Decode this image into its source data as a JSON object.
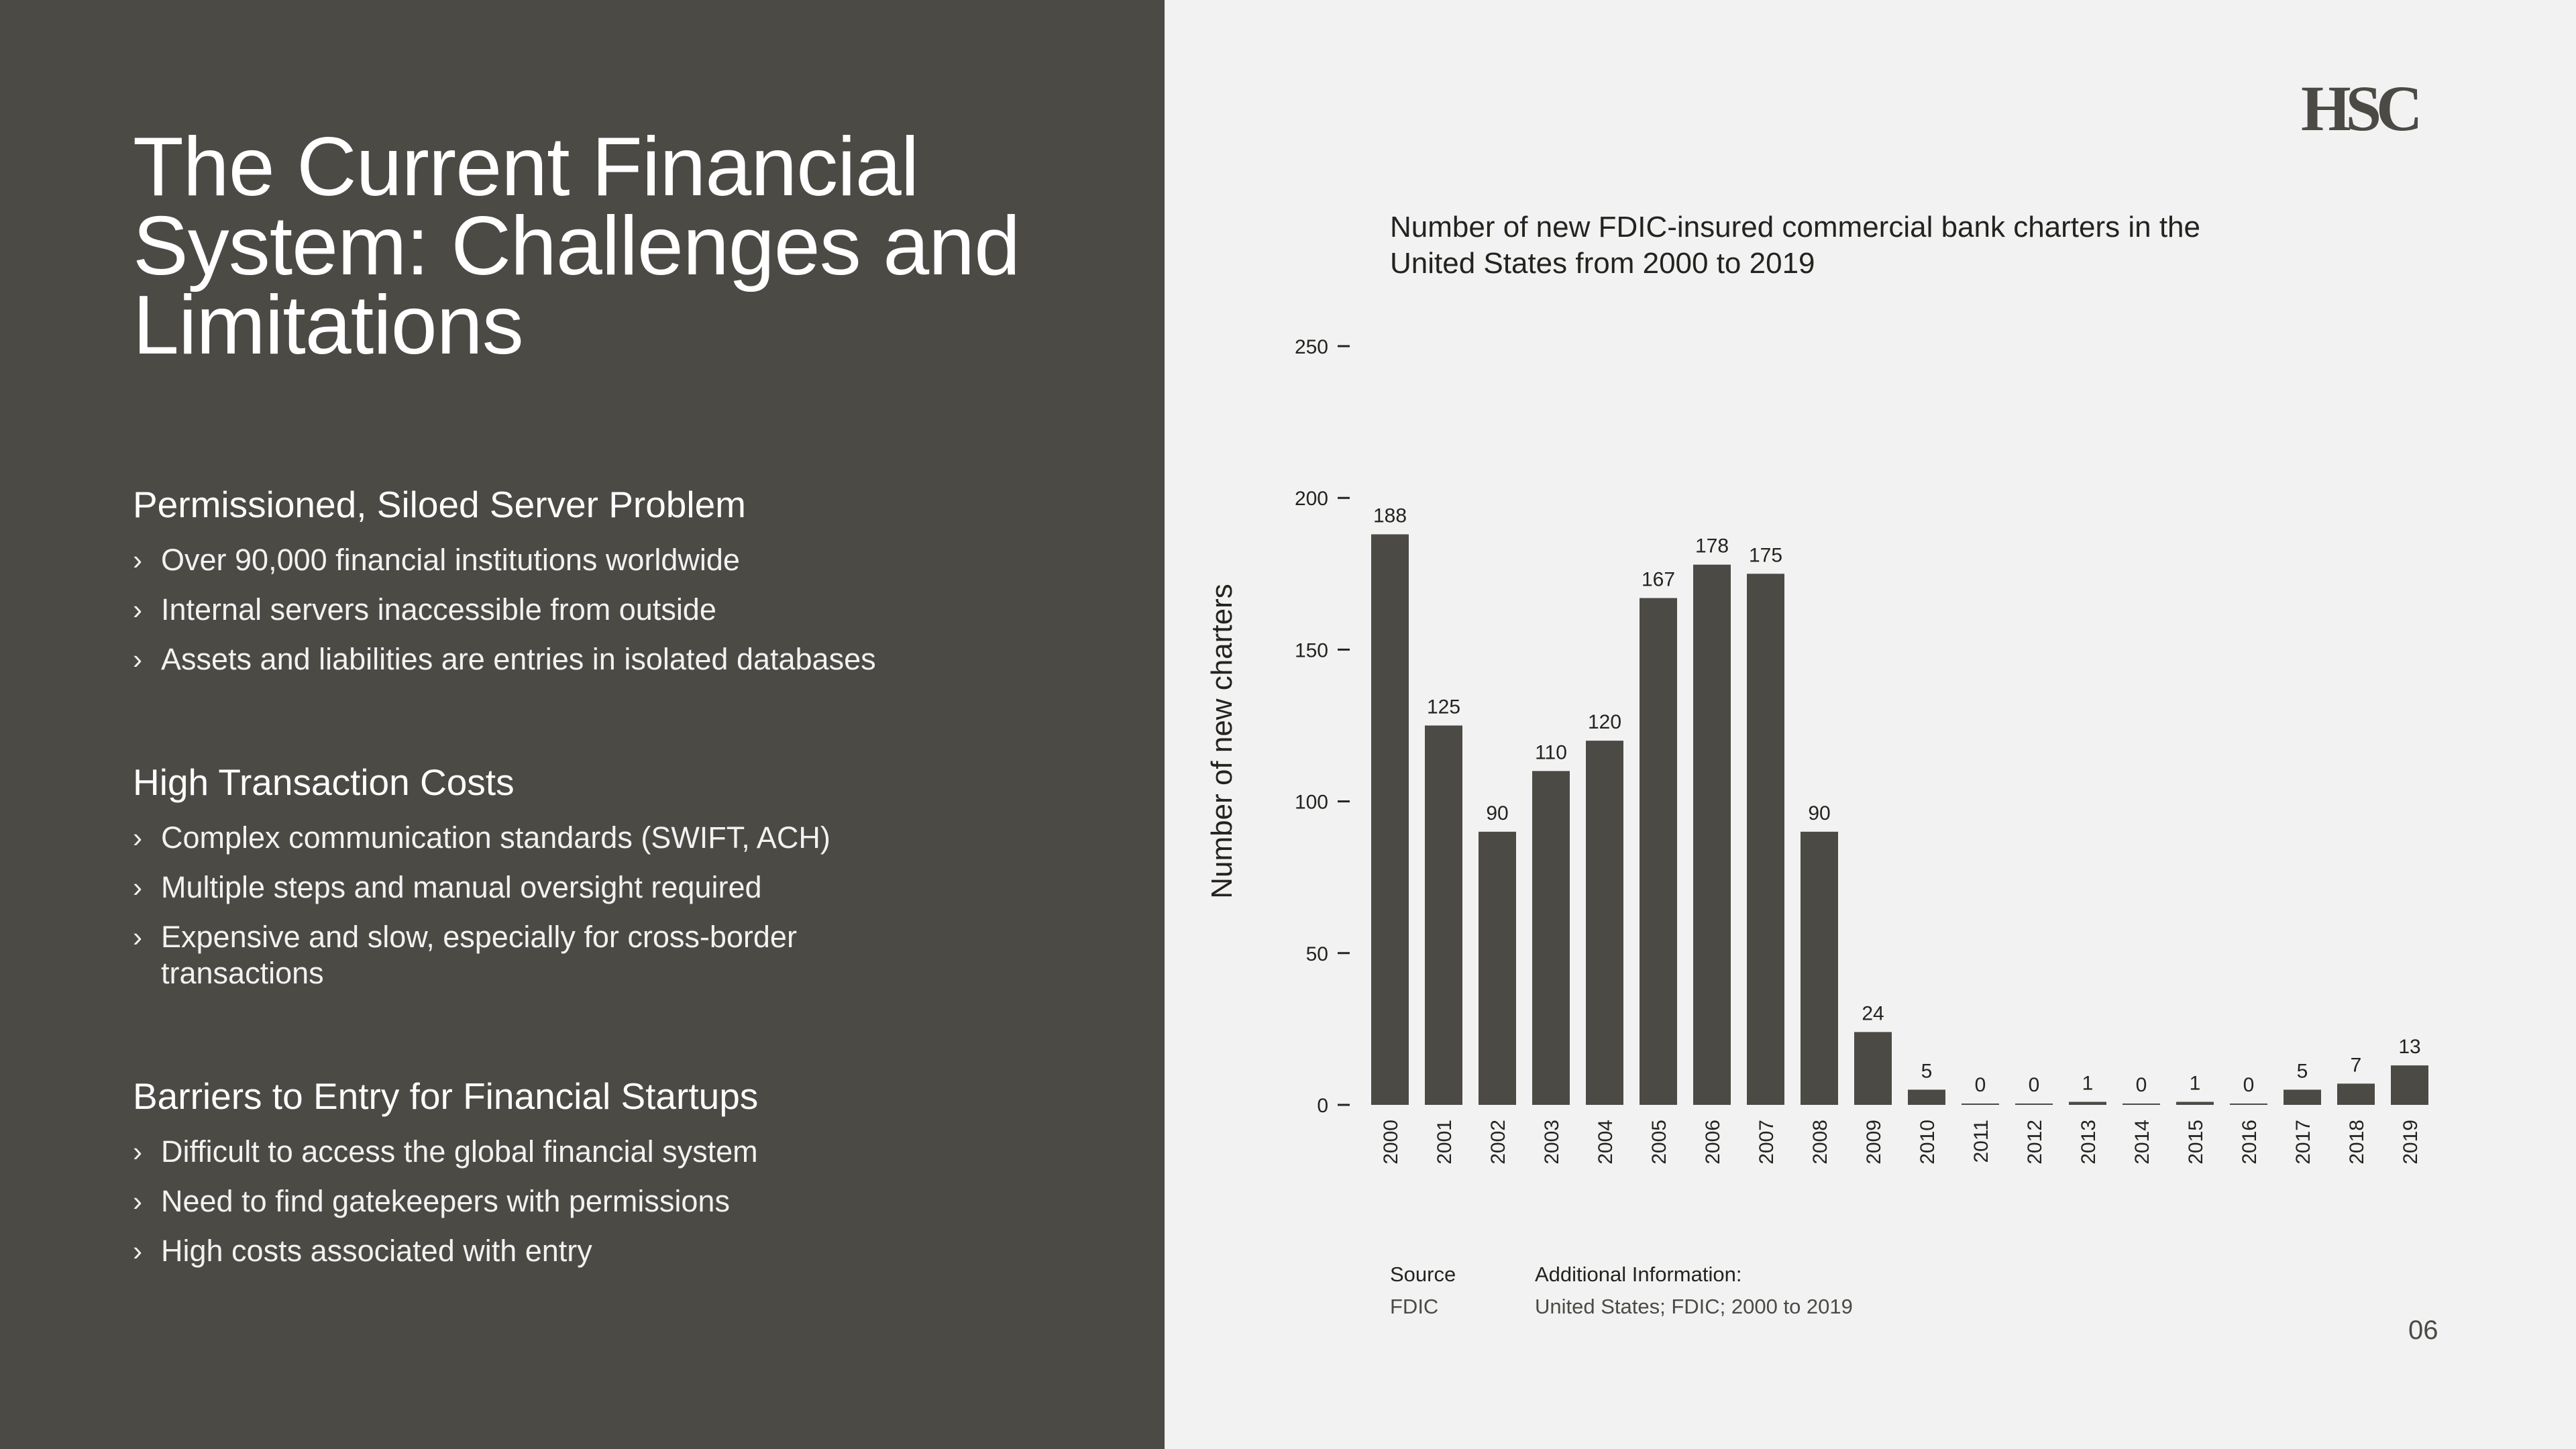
{
  "slide": {
    "title": "The Current Financial System: Challenges and Limitations",
    "logo": "HSC",
    "page_number": "06"
  },
  "sections": [
    {
      "heading": "Permissioned, Siloed Server Problem",
      "bullets": [
        "Over 90,000 financial institutions worldwide",
        "Internal servers inaccessible from outside",
        "Assets and liabilities are entries in isolated databases"
      ]
    },
    {
      "heading": "High Transaction Costs",
      "bullets": [
        "Complex communication standards (SWIFT, ACH)",
        "Multiple steps and manual oversight required",
        "Expensive and slow, especially for cross-border transactions"
      ]
    },
    {
      "heading": "Barriers to Entry for Financial Startups",
      "bullets": [
        "Difficult to access the global financial system",
        "Need to find gatekeepers with permissions",
        "High costs associated with entry"
      ]
    }
  ],
  "chart_data": {
    "type": "bar",
    "title": "Number of new FDIC-insured commercial bank charters in the United States from 2000 to 2019",
    "xlabel": "",
    "ylabel": "Number of new charters",
    "categories": [
      "2000",
      "2001",
      "2002",
      "2003",
      "2004",
      "2005",
      "2006",
      "2007",
      "2008",
      "2009",
      "2010",
      "2011",
      "2012",
      "2013",
      "2014",
      "2015",
      "2016",
      "2017",
      "2018",
      "2019"
    ],
    "values": [
      188,
      125,
      90,
      110,
      120,
      167,
      178,
      175,
      90,
      24,
      5,
      0,
      0,
      1,
      0,
      1,
      0,
      5,
      7,
      13
    ],
    "yticks": [
      0,
      50,
      100,
      150,
      200,
      250
    ],
    "ylim": [
      0,
      250
    ],
    "grid": false,
    "legend": "none",
    "bar_color": "#4b4a45"
  },
  "source": {
    "source_label": "Source",
    "source_value": "FDIC",
    "info_label": "Additional Information:",
    "info_value": "United States; FDIC; 2000 to 2019"
  },
  "colors": {
    "panel": "#4b4a45",
    "background": "#f2f2f2",
    "text_dark": "#24231f"
  }
}
